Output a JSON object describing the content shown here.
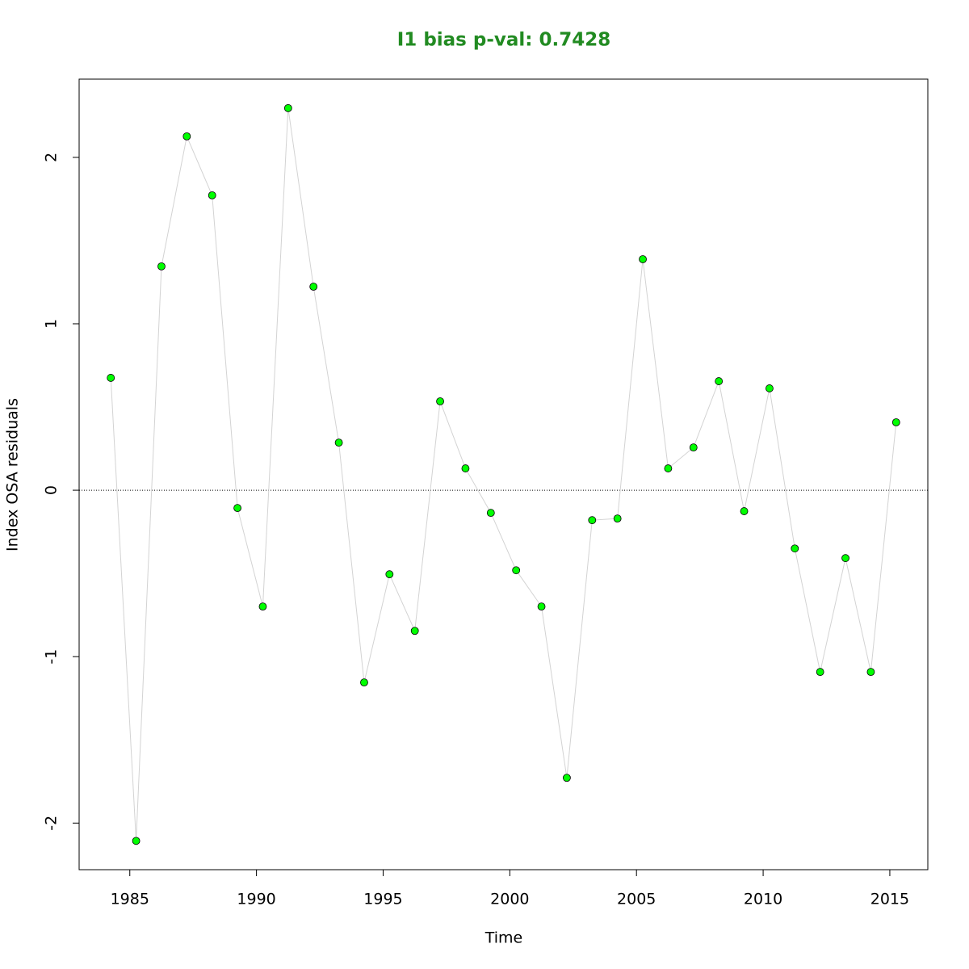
{
  "chart_data": {
    "type": "line",
    "title": "I1 bias p-val: 0.7428",
    "title_color": "#228b22",
    "x_label": "Time",
    "y_label": "Index OSA residuals",
    "x": [
      1984.25,
      1985.25,
      1986.25,
      1987.25,
      1988.25,
      1989.25,
      1990.25,
      1991.25,
      1992.25,
      1993.25,
      1994.25,
      1995.25,
      1996.25,
      1997.25,
      1998.25,
      1999.25,
      2000.25,
      2001.25,
      2002.25,
      2003.25,
      2004.25,
      2005.25,
      2006.25,
      2007.25,
      2008.25,
      2009.25,
      2010.25,
      2011.25,
      2012.25,
      2013.25,
      2014.25,
      2015.25
    ],
    "series": [
      {
        "name": "residuals",
        "color": "#d3d3d3",
        "marker_color": "#00ff00",
        "values": [
          0.675,
          -2.107,
          1.345,
          2.126,
          1.772,
          -0.107,
          -0.699,
          2.296,
          1.223,
          0.286,
          -1.155,
          -0.505,
          -0.845,
          0.534,
          0.131,
          -0.136,
          -0.481,
          -0.699,
          -1.728,
          -0.18,
          -0.17,
          1.388,
          0.131,
          0.257,
          0.655,
          -0.126,
          0.612,
          -0.35,
          -1.092,
          -0.408,
          -1.092,
          0.408
        ]
      }
    ],
    "reference_line": 0,
    "xlim": [
      1983.0,
      2016.5
    ],
    "ylim": [
      -2.28,
      2.47
    ],
    "xticks": [
      1985,
      1990,
      1995,
      2000,
      2005,
      2010,
      2015
    ],
    "yticks": [
      -2,
      -1,
      0,
      1,
      2
    ],
    "grid": false
  }
}
